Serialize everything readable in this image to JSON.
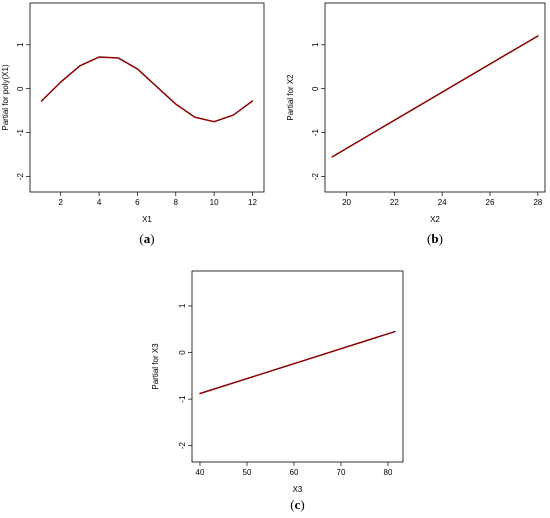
{
  "chart_data": [
    {
      "type": "line",
      "panel_label": "a",
      "xlabel": "X1",
      "ylabel": "Partial for poly(X1)",
      "xlim": [
        0.4,
        12.6
      ],
      "ylim": [
        -2.35,
        1.95
      ],
      "xticks": [
        2,
        4,
        6,
        8,
        10,
        12
      ],
      "yticks": [
        -2,
        -1,
        0,
        1
      ],
      "line_color": "#8b0000",
      "series": [
        {
          "x": [
            1,
            2,
            3,
            4,
            5,
            6,
            7,
            8,
            9,
            10,
            11,
            12
          ],
          "y": [
            -0.28,
            0.15,
            0.52,
            0.72,
            0.7,
            0.45,
            0.05,
            -0.35,
            -0.65,
            -0.75,
            -0.6,
            -0.28
          ]
        }
      ]
    },
    {
      "type": "line",
      "panel_label": "b",
      "xlabel": "X2",
      "ylabel": "Partial for X2",
      "xlim": [
        19.1,
        28.3
      ],
      "ylim": [
        -2.35,
        1.95
      ],
      "xticks": [
        20,
        22,
        24,
        26,
        28
      ],
      "yticks": [
        -2,
        -1,
        0,
        1
      ],
      "line_color": "#8b0000",
      "series": [
        {
          "x": [
            19.4,
            28
          ],
          "y": [
            -1.55,
            1.2
          ]
        }
      ]
    },
    {
      "type": "line",
      "panel_label": "c",
      "xlabel": "X3",
      "ylabel": "Partial for X3",
      "xlim": [
        38.3,
        83.2
      ],
      "ylim": [
        -2.35,
        1.75
      ],
      "xticks": [
        40,
        50,
        60,
        70,
        80
      ],
      "yticks": [
        -2,
        -1,
        0,
        1
      ],
      "line_color": "#8b0000",
      "series": [
        {
          "x": [
            40,
            81.5
          ],
          "y": [
            -0.88,
            0.45
          ]
        }
      ]
    }
  ]
}
